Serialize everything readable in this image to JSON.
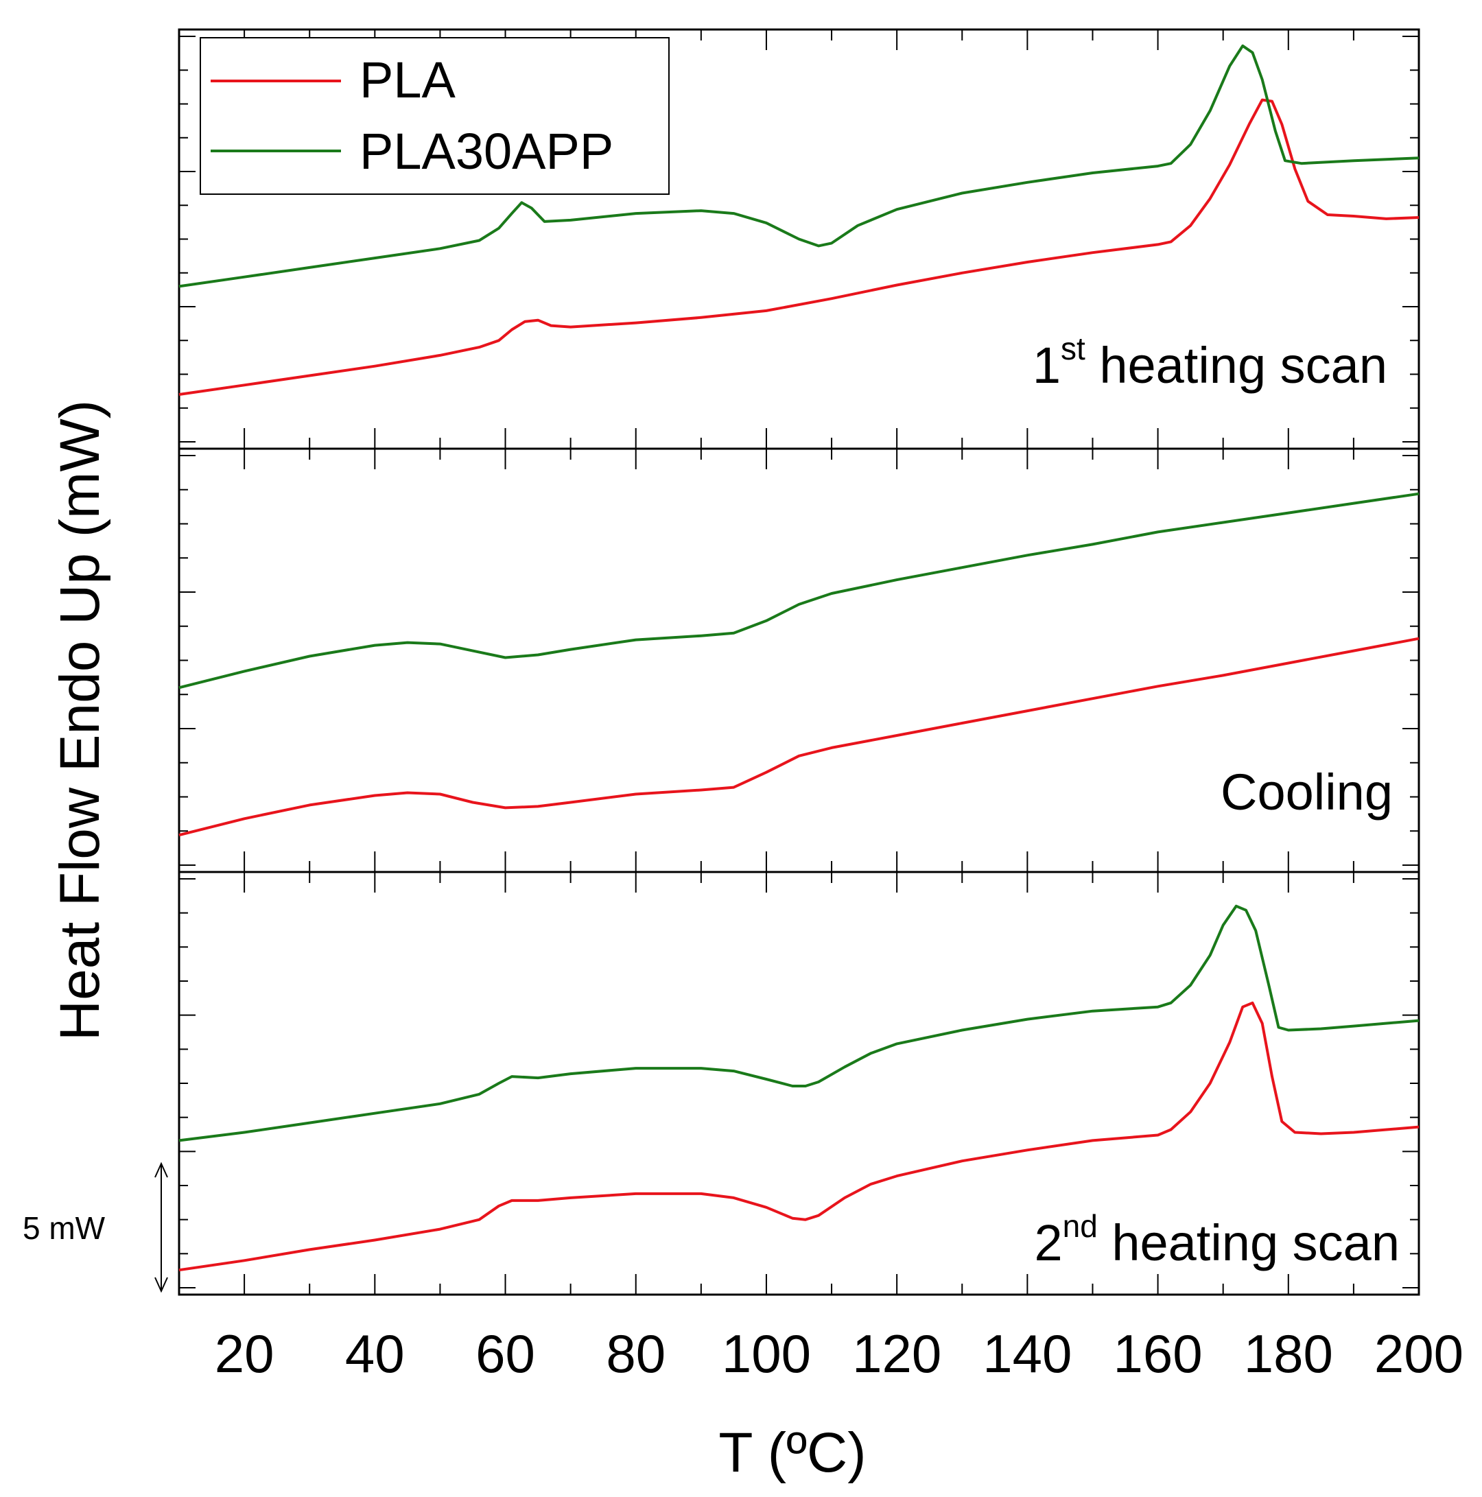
{
  "chart_data": {
    "type": "line",
    "xlabel": "T (ºC)",
    "ylabel": "Heat Flow Endo Up (mW)",
    "xlim": [
      10,
      200
    ],
    "xticks": [
      "20",
      "40",
      "60",
      "80",
      "100",
      "120",
      "140",
      "160",
      "180",
      "200"
    ],
    "yunits": "mW",
    "legend": {
      "position": "top-left",
      "entries": [
        {
          "name": "PLA",
          "color": "#e8141c"
        },
        {
          "name": "PLA30APP",
          "color": "#1a7a1a"
        }
      ]
    },
    "scale_bar": {
      "label": "5 mW",
      "value": 5
    },
    "panels": [
      {
        "label_main": "1",
        "label_sup": "st",
        "label_rest": " heating scan",
        "ylim": [
          0,
          30
        ],
        "series": [
          {
            "name": "PLA",
            "color": "#e8141c",
            "points": [
              [
                10,
                3.5
              ],
              [
                20,
                4.2
              ],
              [
                30,
                4.9
              ],
              [
                40,
                5.6
              ],
              [
                50,
                6.4
              ],
              [
                56,
                7.0
              ],
              [
                59,
                7.5
              ],
              [
                61,
                8.3
              ],
              [
                63,
                8.9
              ],
              [
                65,
                9.0
              ],
              [
                67,
                8.6
              ],
              [
                70,
                8.5
              ],
              [
                80,
                8.8
              ],
              [
                90,
                9.2
              ],
              [
                100,
                9.7
              ],
              [
                110,
                10.6
              ],
              [
                120,
                11.6
              ],
              [
                130,
                12.5
              ],
              [
                140,
                13.3
              ],
              [
                150,
                14.0
              ],
              [
                160,
                14.6
              ],
              [
                162,
                14.8
              ],
              [
                165,
                16.0
              ],
              [
                168,
                18.0
              ],
              [
                171,
                20.5
              ],
              [
                174,
                23.5
              ],
              [
                176,
                25.3
              ],
              [
                177.5,
                25.2
              ],
              [
                179,
                23.5
              ],
              [
                181,
                20.2
              ],
              [
                183,
                17.8
              ],
              [
                186,
                16.8
              ],
              [
                190,
                16.7
              ],
              [
                195,
                16.5
              ],
              [
                200,
                16.6
              ]
            ]
          },
          {
            "name": "PLA30APP",
            "color": "#1a7a1a",
            "points": [
              [
                10,
                11.5
              ],
              [
                20,
                12.2
              ],
              [
                30,
                12.9
              ],
              [
                40,
                13.6
              ],
              [
                50,
                14.3
              ],
              [
                56,
                14.9
              ],
              [
                59,
                15.8
              ],
              [
                61,
                16.9
              ],
              [
                62.5,
                17.7
              ],
              [
                64,
                17.3
              ],
              [
                66,
                16.3
              ],
              [
                70,
                16.4
              ],
              [
                80,
                16.9
              ],
              [
                90,
                17.1
              ],
              [
                95,
                16.9
              ],
              [
                100,
                16.2
              ],
              [
                105,
                15.0
              ],
              [
                108,
                14.5
              ],
              [
                110,
                14.7
              ],
              [
                114,
                16.0
              ],
              [
                120,
                17.2
              ],
              [
                130,
                18.4
              ],
              [
                140,
                19.2
              ],
              [
                150,
                19.9
              ],
              [
                160,
                20.4
              ],
              [
                162,
                20.6
              ],
              [
                165,
                22.0
              ],
              [
                168,
                24.5
              ],
              [
                171,
                27.8
              ],
              [
                173,
                29.3
              ],
              [
                174.5,
                28.8
              ],
              [
                176,
                26.8
              ],
              [
                178,
                23.0
              ],
              [
                179.5,
                20.8
              ],
              [
                182,
                20.6
              ],
              [
                190,
                20.8
              ],
              [
                200,
                21.0
              ]
            ]
          }
        ]
      },
      {
        "label_main": "Cooling",
        "label_sup": "",
        "label_rest": "",
        "ylim": [
          0,
          30
        ],
        "series": [
          {
            "name": "PLA",
            "color": "#e8141c",
            "points": [
              [
                10,
                2.2
              ],
              [
                20,
                3.4
              ],
              [
                30,
                4.4
              ],
              [
                40,
                5.1
              ],
              [
                45,
                5.3
              ],
              [
                50,
                5.2
              ],
              [
                55,
                4.6
              ],
              [
                60,
                4.2
              ],
              [
                65,
                4.3
              ],
              [
                70,
                4.6
              ],
              [
                80,
                5.2
              ],
              [
                90,
                5.5
              ],
              [
                95,
                5.7
              ],
              [
                100,
                6.8
              ],
              [
                105,
                8.0
              ],
              [
                110,
                8.6
              ],
              [
                120,
                9.5
              ],
              [
                130,
                10.4
              ],
              [
                140,
                11.3
              ],
              [
                150,
                12.2
              ],
              [
                160,
                13.1
              ],
              [
                170,
                13.9
              ],
              [
                180,
                14.8
              ],
              [
                190,
                15.7
              ],
              [
                200,
                16.6
              ]
            ]
          },
          {
            "name": "PLA30APP",
            "color": "#1a7a1a",
            "points": [
              [
                10,
                13.0
              ],
              [
                20,
                14.2
              ],
              [
                30,
                15.3
              ],
              [
                40,
                16.1
              ],
              [
                45,
                16.3
              ],
              [
                50,
                16.2
              ],
              [
                55,
                15.7
              ],
              [
                60,
                15.2
              ],
              [
                65,
                15.4
              ],
              [
                70,
                15.8
              ],
              [
                80,
                16.5
              ],
              [
                90,
                16.8
              ],
              [
                95,
                17.0
              ],
              [
                100,
                17.9
              ],
              [
                105,
                19.1
              ],
              [
                110,
                19.9
              ],
              [
                120,
                20.9
              ],
              [
                130,
                21.8
              ],
              [
                140,
                22.7
              ],
              [
                150,
                23.5
              ],
              [
                160,
                24.4
              ],
              [
                170,
                25.1
              ],
              [
                180,
                25.8
              ],
              [
                190,
                26.5
              ],
              [
                200,
                27.2
              ]
            ]
          }
        ]
      },
      {
        "label_main": "2",
        "label_sup": "nd",
        "label_rest": " heating scan",
        "ylim": [
          0,
          30
        ],
        "series": [
          {
            "name": "PLA",
            "color": "#e8141c",
            "points": [
              [
                10,
                1.3
              ],
              [
                20,
                2.0
              ],
              [
                30,
                2.8
              ],
              [
                40,
                3.5
              ],
              [
                50,
                4.3
              ],
              [
                56,
                5.0
              ],
              [
                59,
                6.0
              ],
              [
                61,
                6.4
              ],
              [
                65,
                6.4
              ],
              [
                70,
                6.6
              ],
              [
                80,
                6.9
              ],
              [
                90,
                6.9
              ],
              [
                95,
                6.6
              ],
              [
                100,
                5.9
              ],
              [
                104,
                5.1
              ],
              [
                106,
                5.0
              ],
              [
                108,
                5.3
              ],
              [
                112,
                6.6
              ],
              [
                116,
                7.6
              ],
              [
                120,
                8.2
              ],
              [
                130,
                9.3
              ],
              [
                140,
                10.1
              ],
              [
                150,
                10.8
              ],
              [
                160,
                11.2
              ],
              [
                162,
                11.6
              ],
              [
                165,
                12.9
              ],
              [
                168,
                15.0
              ],
              [
                171,
                18.0
              ],
              [
                173,
                20.6
              ],
              [
                174.5,
                20.9
              ],
              [
                176,
                19.4
              ],
              [
                177.5,
                15.5
              ],
              [
                179,
                12.2
              ],
              [
                181,
                11.4
              ],
              [
                185,
                11.3
              ],
              [
                190,
                11.4
              ],
              [
                200,
                11.8
              ]
            ]
          },
          {
            "name": "PLA30APP",
            "color": "#1a7a1a",
            "points": [
              [
                10,
                10.8
              ],
              [
                20,
                11.4
              ],
              [
                30,
                12.1
              ],
              [
                40,
                12.8
              ],
              [
                50,
                13.5
              ],
              [
                56,
                14.2
              ],
              [
                59,
                15.0
              ],
              [
                61,
                15.5
              ],
              [
                65,
                15.4
              ],
              [
                70,
                15.7
              ],
              [
                80,
                16.1
              ],
              [
                90,
                16.1
              ],
              [
                95,
                15.9
              ],
              [
                100,
                15.3
              ],
              [
                104,
                14.8
              ],
              [
                106,
                14.8
              ],
              [
                108,
                15.1
              ],
              [
                112,
                16.2
              ],
              [
                116,
                17.2
              ],
              [
                120,
                17.9
              ],
              [
                130,
                18.9
              ],
              [
                140,
                19.7
              ],
              [
                150,
                20.3
              ],
              [
                160,
                20.6
              ],
              [
                162,
                20.9
              ],
              [
                165,
                22.2
              ],
              [
                168,
                24.4
              ],
              [
                170,
                26.6
              ],
              [
                172,
                28.0
              ],
              [
                173.5,
                27.7
              ],
              [
                175,
                26.2
              ],
              [
                177,
                22.2
              ],
              [
                178.5,
                19.1
              ],
              [
                180,
                18.9
              ],
              [
                185,
                19.0
              ],
              [
                190,
                19.2
              ],
              [
                200,
                19.6
              ]
            ]
          }
        ]
      }
    ]
  }
}
